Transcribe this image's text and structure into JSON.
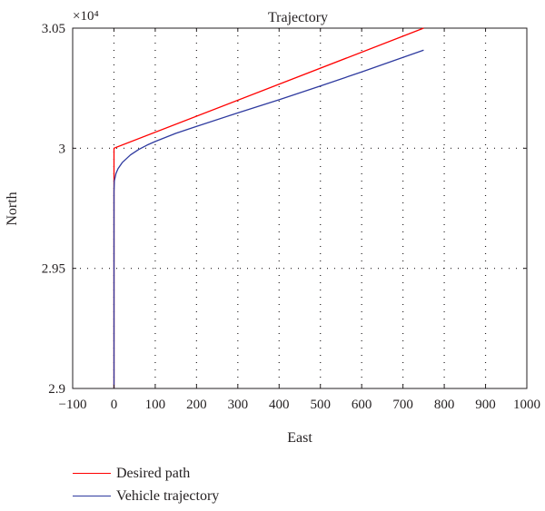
{
  "chart_data": {
    "type": "line",
    "title": "Trajectory",
    "xlabel": "East",
    "ylabel": "North",
    "xlim": [
      -100,
      1000
    ],
    "ylim": [
      29000,
      30500
    ],
    "y_scale_label": "×10⁴",
    "x_ticks": [
      -100,
      0,
      100,
      200,
      300,
      400,
      500,
      600,
      700,
      800,
      900,
      1000
    ],
    "x_tick_labels": [
      "−100",
      "0",
      "100",
      "200",
      "300",
      "400",
      "500",
      "600",
      "700",
      "800",
      "900",
      "1000"
    ],
    "y_ticks": [
      29000,
      29500,
      30000,
      30500
    ],
    "y_tick_labels": [
      "2.9",
      "2.95",
      "3",
      "3.05"
    ],
    "grid": true,
    "legend_position": "below",
    "series": [
      {
        "name": "Desired path",
        "color": "#ff0000",
        "x": [
          0,
          0,
          750
        ],
        "y": [
          29000,
          30000,
          30500
        ]
      },
      {
        "name": "Vehicle trajectory",
        "color": "#2e3a9f",
        "x": [
          0,
          0,
          1,
          5,
          10,
          20,
          40,
          60,
          80,
          100,
          150,
          200,
          300,
          400,
          500,
          600,
          700,
          750
        ],
        "y": [
          29000,
          29820,
          29865,
          29895,
          29915,
          29940,
          29972,
          29995,
          30013,
          30028,
          30062,
          30091,
          30147,
          30202,
          30259,
          30318,
          30378,
          30408
        ]
      }
    ]
  }
}
